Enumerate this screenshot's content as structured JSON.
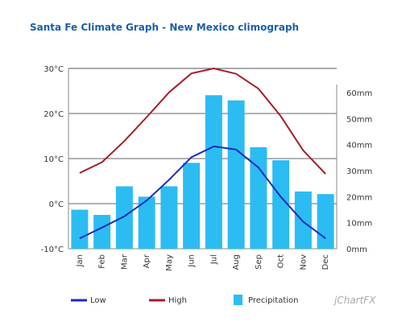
{
  "chart_data": {
    "type": "bar",
    "title": "Santa Fe Climate Graph - New Mexico climograph",
    "categories": [
      "Jan",
      "Feb",
      "Mar",
      "Apr",
      "May",
      "Jun",
      "Jul",
      "Aug",
      "Sep",
      "Oct",
      "Nov",
      "Dec"
    ],
    "y_left": {
      "ticks": [
        "30°C",
        "20°C",
        "10°C",
        "0°C",
        "-10°C"
      ],
      "range": [
        -10,
        30
      ]
    },
    "y_right": {
      "ticks": [
        "60mm",
        "50mm",
        "40mm",
        "30mm",
        "20mm",
        "10mm",
        "0mm"
      ],
      "range": [
        0,
        70
      ]
    },
    "grid": true,
    "legend_position": "bottom",
    "series": [
      {
        "name": "Precipitation",
        "kind": "bar",
        "axis": "right",
        "color": "#2bbcf2",
        "values": [
          15,
          13,
          24,
          20,
          24,
          33,
          59,
          57,
          39,
          34,
          22,
          21
        ]
      },
      {
        "name": "Low",
        "kind": "line",
        "axis": "left",
        "color": "#1a2bbf",
        "values": [
          -7.7,
          -5.3,
          -2.8,
          0.7,
          5.3,
          10.3,
          12.7,
          12.0,
          8.0,
          1.5,
          -4.0,
          -7.7
        ]
      },
      {
        "name": "High",
        "kind": "line",
        "axis": "left",
        "color": "#a81c2c",
        "values": [
          6.8,
          9.2,
          13.9,
          19.2,
          24.7,
          28.9,
          30.0,
          28.8,
          25.5,
          19.4,
          11.8,
          6.6
        ]
      }
    ],
    "legend": [
      "Low",
      "High",
      "Precipitation"
    ],
    "brand": "jChartFX"
  }
}
